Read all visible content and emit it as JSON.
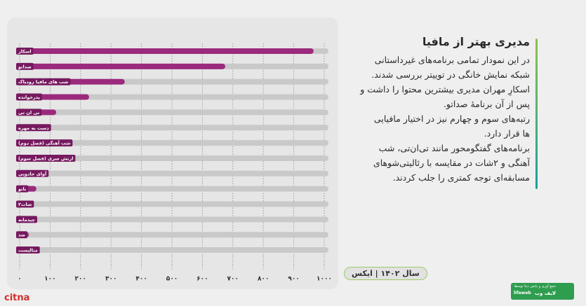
{
  "chart_data": {
    "type": "bar",
    "orientation": "horizontal",
    "color": "#9b2a7d",
    "label_color": "#76195f",
    "track_color": "#c9c9c9",
    "categories": [
      "اسکار",
      "صداتو",
      "شب های مافیا زودیاک",
      "پدرخوانده",
      "تی ان تی",
      "دست به مهره",
      "شب آهنگی (فصل دوم)",
      "ارتش سری (فصل سوم)",
      "آوای جادویی",
      "ناتو",
      "۲شات",
      "چیدمانه",
      "ضد",
      "متالیست"
    ],
    "values": [
      965,
      675,
      345,
      228,
      120,
      95,
      75,
      70,
      65,
      55,
      45,
      40,
      30,
      25
    ],
    "xlim": [
      0,
      1000
    ],
    "xticks": [
      {
        "value": 0,
        "label": "۰"
      },
      {
        "value": 100,
        "label": "۱۰۰"
      },
      {
        "value": 200,
        "label": "۲۰۰"
      },
      {
        "value": 300,
        "label": "۳۰۰"
      },
      {
        "value": 400,
        "label": "۴۰۰"
      },
      {
        "value": 500,
        "label": "۵۰۰"
      },
      {
        "value": 600,
        "label": "۶۰۰"
      },
      {
        "value": 700,
        "label": "۷۰۰"
      },
      {
        "value": 800,
        "label": "۸۰۰"
      },
      {
        "value": 900,
        "label": "۹۰۰"
      },
      {
        "value": 1000,
        "label": "۱۰۰۰"
      }
    ],
    "grid": true
  },
  "article": {
    "title": "مدیری بهتر از مافیا",
    "lines": [
      "در این نمودار تمامی برنامه‌های غیرداستانی",
      "شبکه نمایش خانگی در توییتر بررسی شدند.",
      "اسکارِ مهران مدیری بیشترین محتوا را داشت و",
      "پس از آن برنامهٔ صداتو.",
      "رتبه‌های سوم و چهارم نیز در اختیار مافیایی",
      "ها قرار دارد.",
      "برنامه‌های گفتگومحور مانند تی‌ان‌تی، شب",
      "آهنگی و ۲شات در مقایسه با رئالیتی‌شوهای",
      "مسابقه‌ای توجه کمتری را جلب کردند."
    ]
  },
  "badge": "سال ۱۴۰۲ | ایکس",
  "footer": {
    "site": "citna",
    "note": "جمع آوری و پایش دیتا توسط",
    "brand": "لایف وب",
    "brand_latin": "lifeweb"
  }
}
